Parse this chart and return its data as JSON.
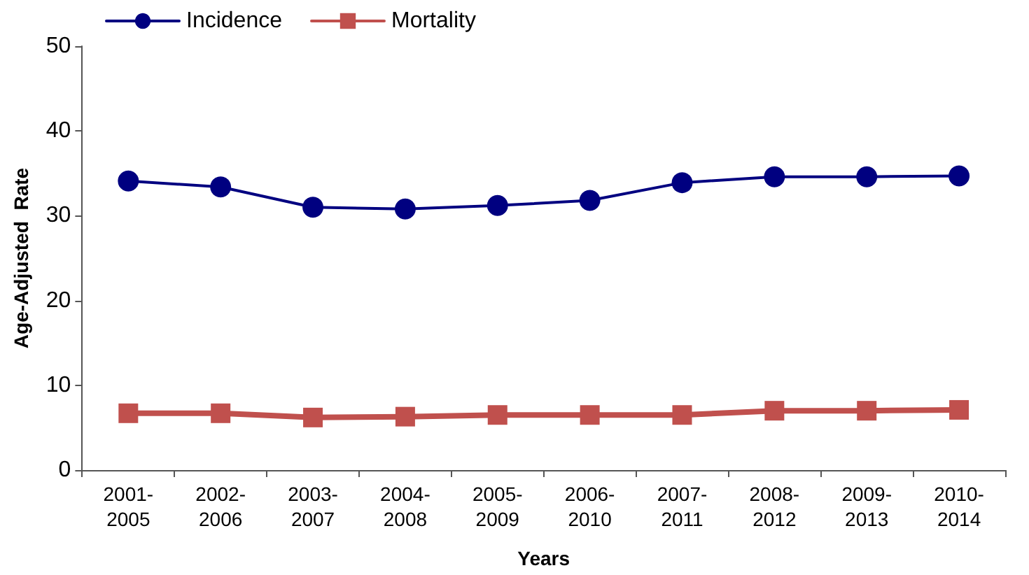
{
  "chart_data": {
    "type": "line",
    "xlabel": "Years",
    "ylabel": "Age-Adjusted  Rate",
    "categories": [
      "2001-\n2005",
      "2002-\n2006",
      "2003-\n2007",
      "2004-\n2008",
      "2005-\n2009",
      "2006-\n2010",
      "2007-\n2011",
      "2008-\n2012",
      "2009-\n2013",
      "2010-\n2014"
    ],
    "series": [
      {
        "name": "Incidence",
        "color": "#000080",
        "marker": "circle",
        "values": [
          34.1,
          33.4,
          31.0,
          30.8,
          31.2,
          31.8,
          33.9,
          34.6,
          34.6,
          34.7
        ]
      },
      {
        "name": "Mortality",
        "color": "#c0504d",
        "marker": "square",
        "values": [
          6.7,
          6.7,
          6.2,
          6.3,
          6.5,
          6.5,
          6.5,
          7.0,
          7.0,
          7.1
        ]
      }
    ],
    "ylim": [
      0,
      50
    ],
    "yticks": [
      0,
      10,
      20,
      30,
      40,
      50
    ],
    "grid": false,
    "legend": "top left",
    "line_style": "solid"
  }
}
